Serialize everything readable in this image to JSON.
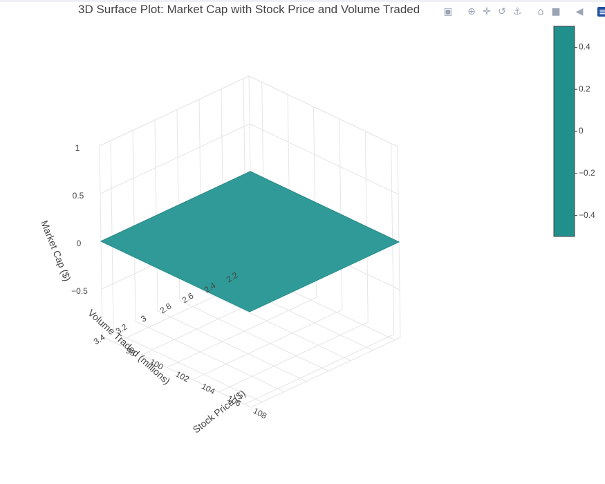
{
  "modebar": {
    "icons": [
      "camera-icon",
      "zoom-icon",
      "pan-icon",
      "orbit-rotate-icon",
      "turntable-rotate-icon",
      "home-icon",
      "reset-camera-icon",
      "hover-toggle-icon",
      "plotly-logo-icon"
    ]
  },
  "colors": {
    "surface": "#2f9a97",
    "surface_edge": "#288f8c",
    "colorbar": "#21908d",
    "grid": "#e5e5e5",
    "axis_line": "#444444"
  },
  "chart_data": {
    "type": "surface",
    "title": "3D Surface Plot: Market Cap with Stock Price and Volume Traded",
    "x_axis": {
      "label": "Stock Price ($)",
      "ticks": [
        "98",
        "100",
        "102",
        "104",
        "106",
        "108"
      ],
      "range": [
        97,
        108.5
      ]
    },
    "y_axis": {
      "label": "Volume Traded (millions)",
      "ticks": [
        "2.2",
        "2.4",
        "2.6",
        "2.8",
        "3",
        "3.2",
        "3.4"
      ],
      "range": [
        2.15,
        3.5
      ]
    },
    "z_axis": {
      "label": "Market Cap ($)",
      "ticks": [
        "−0.5",
        "0",
        "0.5",
        "1"
      ],
      "range": [
        -1,
        1
      ]
    },
    "surface": {
      "x_range": [
        97,
        108.5
      ],
      "y_range": [
        2.15,
        3.5
      ],
      "z_value": 0
    },
    "colorbar": {
      "ticks": [
        "0.4",
        "0.2",
        "0",
        "−0.2",
        "−0.4"
      ],
      "range": [
        -0.5,
        0.5
      ]
    },
    "grid": true
  }
}
